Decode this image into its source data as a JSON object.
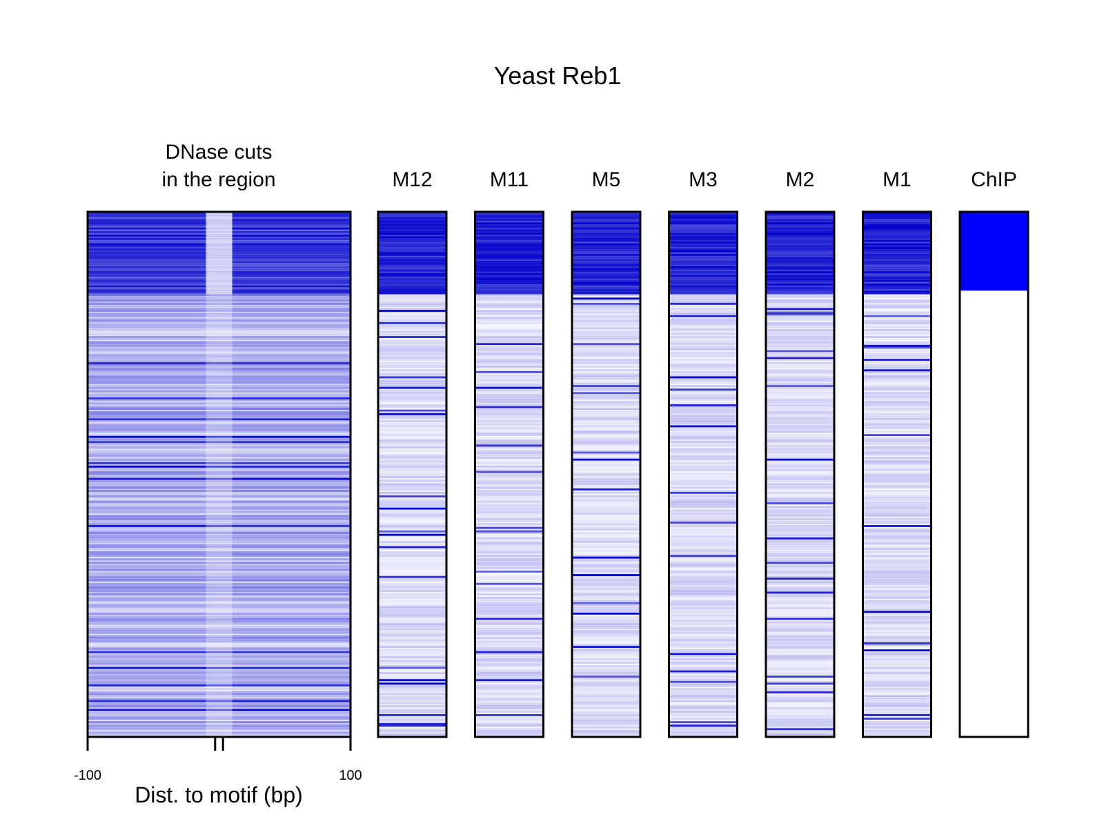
{
  "chart_data": {
    "type": "heatmap",
    "title": "Yeast Reb1",
    "heatmap_panel": {
      "title_lines": [
        "DNase cuts",
        "in the region"
      ],
      "xlabel": "Dist. to motif (bp)",
      "xlim": [
        -100,
        100
      ],
      "x_tick_labels": [
        "-100",
        "100"
      ],
      "x_ticks": [
        -100,
        -3,
        3,
        100
      ],
      "motif_gap": [
        -10,
        10
      ],
      "high_density_fraction": 0.155,
      "color": "#0000cc"
    },
    "columns": [
      {
        "name": "M12",
        "high_fraction": 0.155
      },
      {
        "name": "M11",
        "high_fraction": 0.155
      },
      {
        "name": "M5",
        "high_fraction": 0.155
      },
      {
        "name": "M3",
        "high_fraction": 0.155
      },
      {
        "name": "M2",
        "high_fraction": 0.155
      },
      {
        "name": "M1",
        "high_fraction": 0.155
      },
      {
        "name": "ChIP",
        "bound_fraction": 0.15,
        "color": "#0000ff"
      }
    ]
  }
}
